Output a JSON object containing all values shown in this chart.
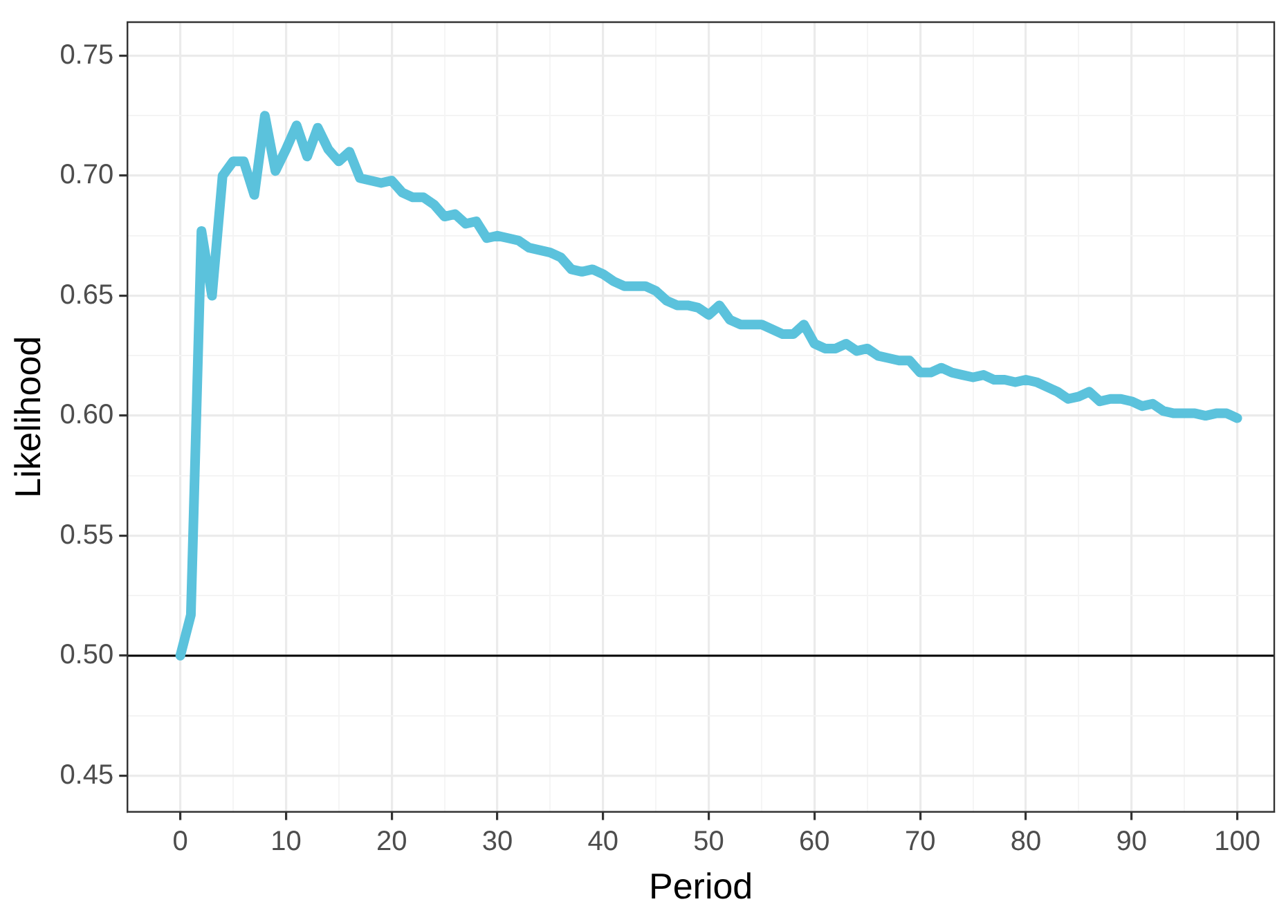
{
  "chart_data": {
    "type": "line",
    "xlabel": "Period",
    "ylabel": "Likelihood",
    "x": [
      0,
      1,
      2,
      3,
      4,
      5,
      6,
      7,
      8,
      9,
      10,
      11,
      12,
      13,
      14,
      15,
      16,
      17,
      18,
      19,
      20,
      21,
      22,
      23,
      24,
      25,
      26,
      27,
      28,
      29,
      30,
      31,
      32,
      33,
      34,
      35,
      36,
      37,
      38,
      39,
      40,
      41,
      42,
      43,
      44,
      45,
      46,
      47,
      48,
      49,
      50,
      51,
      52,
      53,
      54,
      55,
      56,
      57,
      58,
      59,
      60,
      61,
      62,
      63,
      64,
      65,
      66,
      67,
      68,
      69,
      70,
      71,
      72,
      73,
      74,
      75,
      76,
      77,
      78,
      79,
      80,
      81,
      82,
      83,
      84,
      85,
      86,
      87,
      88,
      89,
      90,
      91,
      92,
      93,
      94,
      95,
      96,
      97,
      98,
      99,
      100
    ],
    "series": [
      {
        "color": "#5bc2dc",
        "values": [
          0.5,
          0.517,
          0.677,
          0.65,
          0.7,
          0.706,
          0.706,
          0.692,
          0.725,
          0.702,
          0.711,
          0.721,
          0.708,
          0.72,
          0.711,
          0.706,
          0.71,
          0.699,
          0.698,
          0.697,
          0.698,
          0.693,
          0.691,
          0.691,
          0.688,
          0.683,
          0.684,
          0.68,
          0.681,
          0.674,
          0.675,
          0.674,
          0.673,
          0.67,
          0.669,
          0.668,
          0.666,
          0.661,
          0.66,
          0.661,
          0.659,
          0.656,
          0.654,
          0.654,
          0.654,
          0.652,
          0.648,
          0.646,
          0.646,
          0.645,
          0.642,
          0.646,
          0.64,
          0.638,
          0.638,
          0.638,
          0.636,
          0.634,
          0.634,
          0.638,
          0.63,
          0.628,
          0.628,
          0.63,
          0.627,
          0.628,
          0.625,
          0.624,
          0.623,
          0.623,
          0.618,
          0.618,
          0.62,
          0.618,
          0.617,
          0.616,
          0.617,
          0.615,
          0.615,
          0.614,
          0.615,
          0.614,
          0.612,
          0.61,
          0.607,
          0.608,
          0.61,
          0.606,
          0.607,
          0.607,
          0.606,
          0.604,
          0.605,
          0.602,
          0.601,
          0.601,
          0.601,
          0.6,
          0.601,
          0.601,
          0.599
        ]
      }
    ],
    "xlim": [
      -5,
      103.5
    ],
    "ylim": [
      0.435,
      0.764
    ],
    "xticks": [
      0,
      {
        "value": 5,
        "label": null
      },
      10,
      {
        "value": 15,
        "label": null
      },
      20,
      {
        "value": 25,
        "label": null
      },
      30,
      {
        "value": 35,
        "label": null
      },
      40,
      {
        "value": 45,
        "label": null
      },
      50,
      {
        "value": 55,
        "label": null
      },
      60,
      {
        "value": 65,
        "label": null
      },
      70,
      {
        "value": 75,
        "label": null
      },
      80,
      {
        "value": 85,
        "label": null
      },
      90,
      {
        "value": 95,
        "label": null
      },
      100
    ],
    "yticks": [
      {
        "value": 0.45,
        "label": "0.45"
      },
      {
        "value": 0.475,
        "label": null
      },
      {
        "value": 0.5,
        "label": "0.50"
      },
      {
        "value": 0.525,
        "label": null
      },
      {
        "value": 0.55,
        "label": "0.55"
      },
      {
        "value": 0.575,
        "label": null
      },
      {
        "value": 0.6,
        "label": "0.60"
      },
      {
        "value": 0.625,
        "label": null
      },
      {
        "value": 0.65,
        "label": "0.65"
      },
      {
        "value": 0.675,
        "label": null
      },
      {
        "value": 0.7,
        "label": "0.70"
      },
      {
        "value": 0.725,
        "label": null
      },
      {
        "value": 0.75,
        "label": "0.75"
      }
    ],
    "ref_lines": [
      {
        "axis": "y",
        "value": 0.5,
        "color": "#000000"
      }
    ],
    "grid": true,
    "legend": false,
    "marker": "none",
    "line_style": "solid"
  }
}
